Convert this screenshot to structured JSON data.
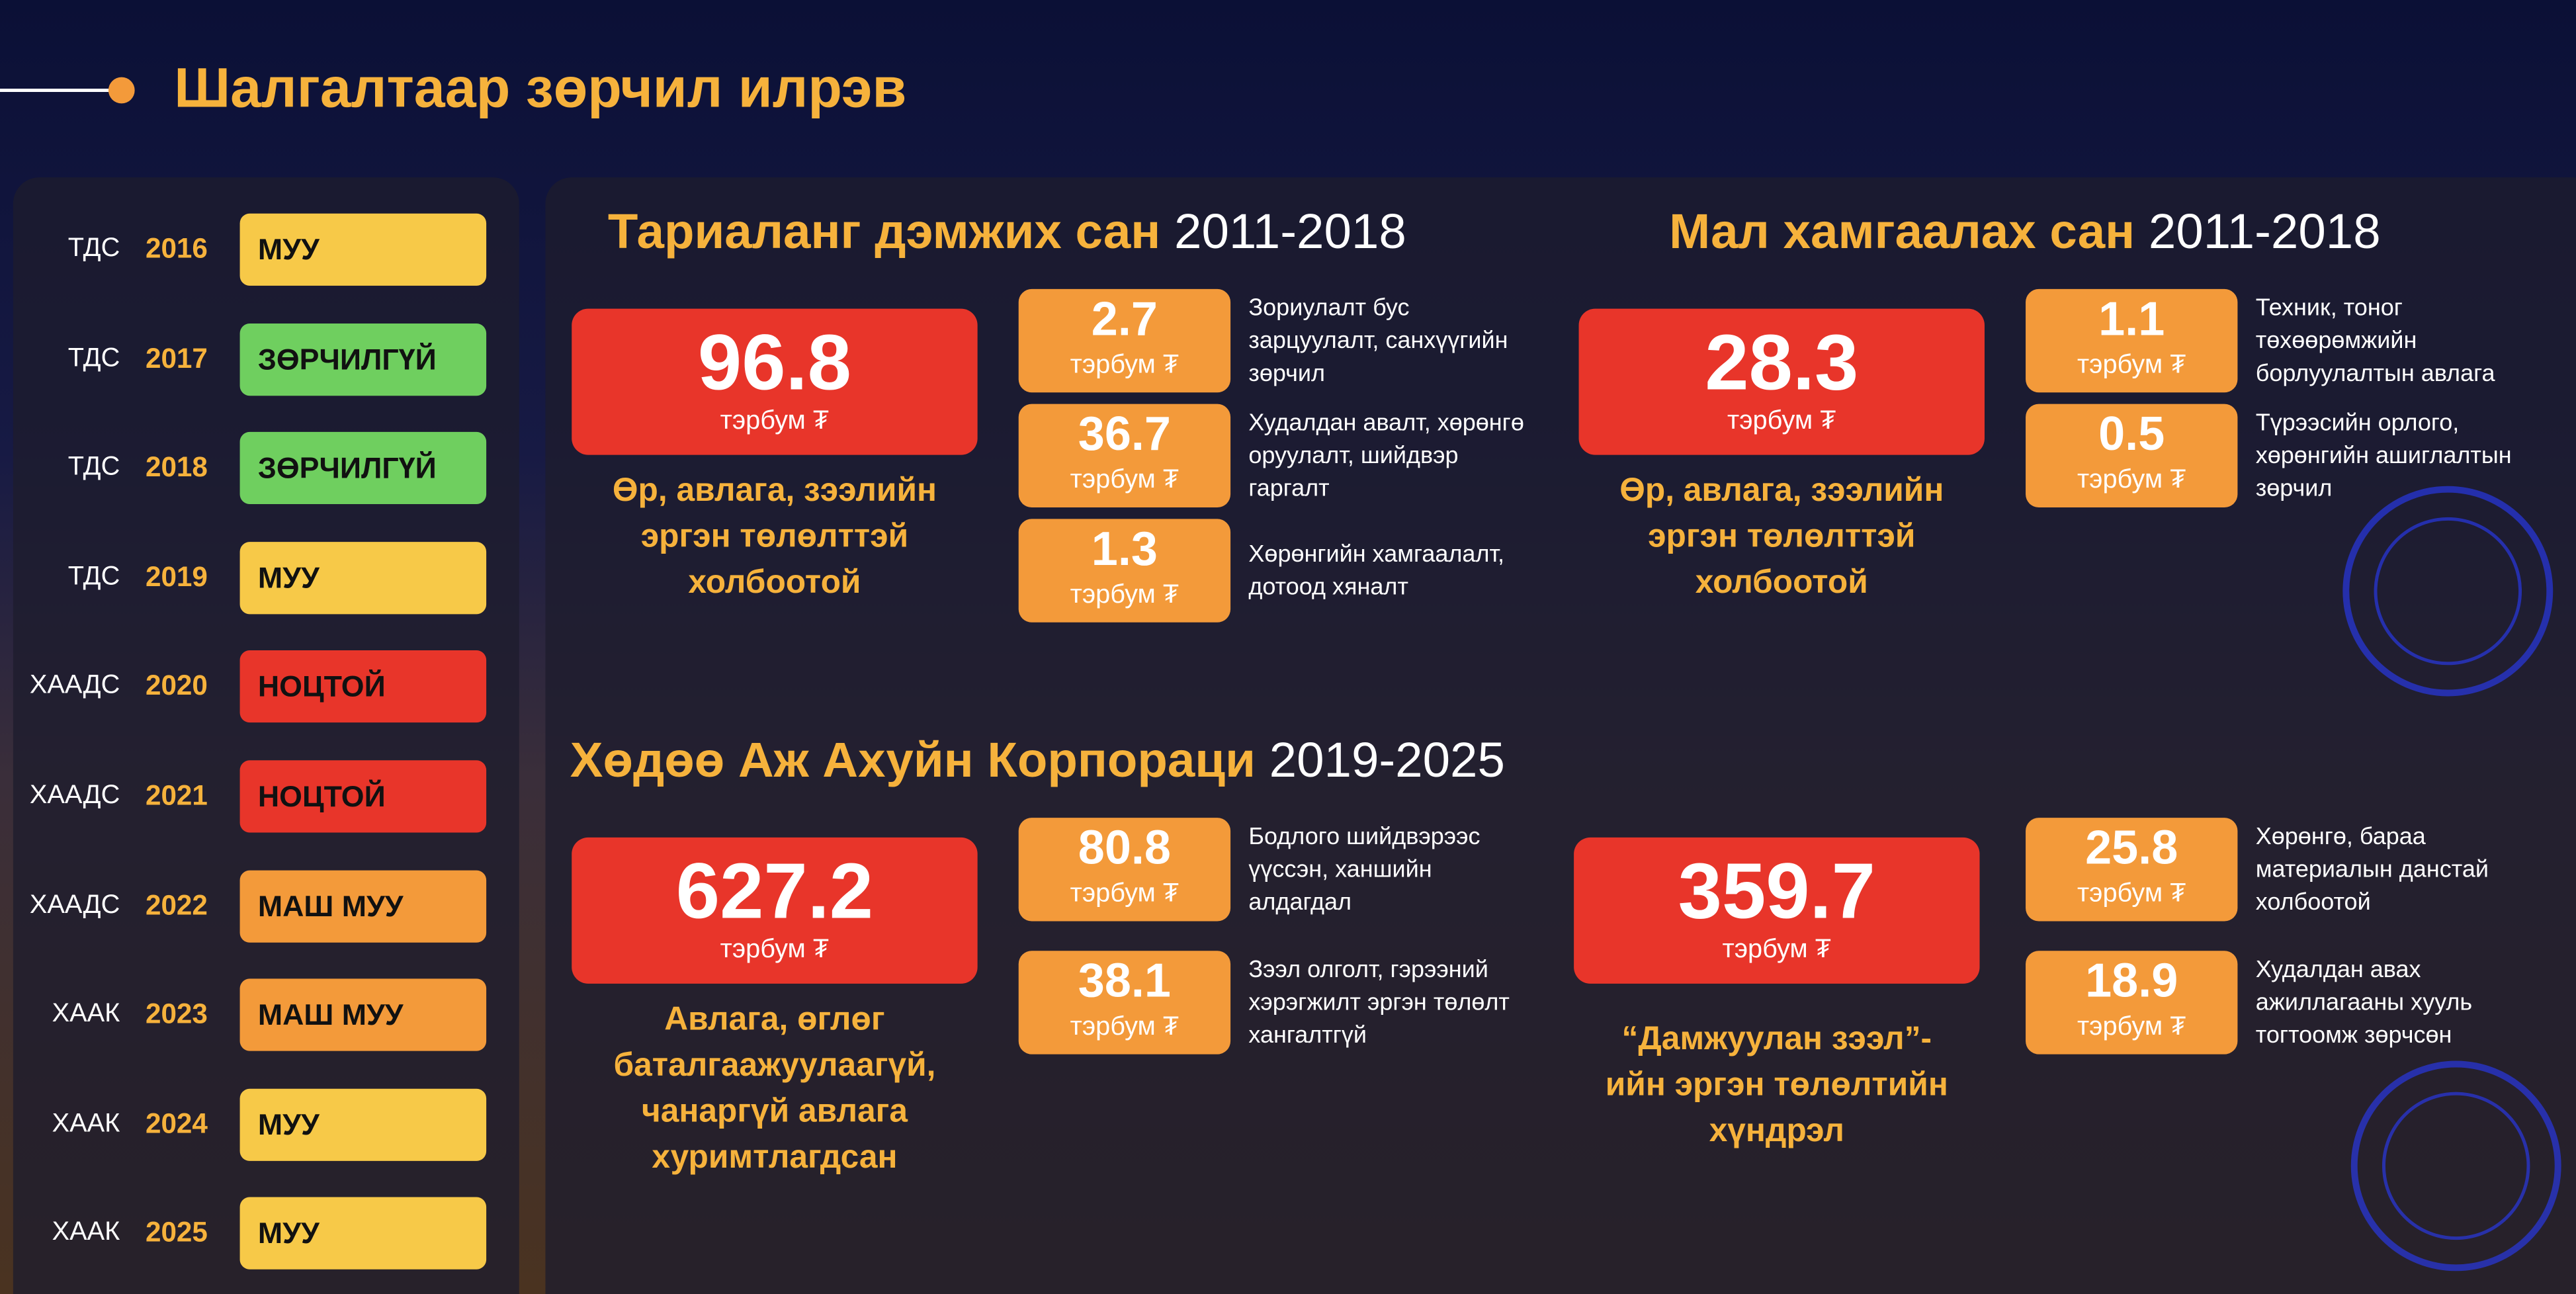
{
  "header": {
    "title": "Шалгалтаар зөрчил илрэв"
  },
  "unit": "тэрбум ₮",
  "years": [
    {
      "org": "ТДС",
      "year": "2016",
      "status": "МУУ",
      "color": "#f7c948"
    },
    {
      "org": "ТДС",
      "year": "2017",
      "status": "ЗӨРЧИЛГҮЙ",
      "color": "#6fcf5f"
    },
    {
      "org": "ТДС",
      "year": "2018",
      "status": "ЗӨРЧИЛГҮЙ",
      "color": "#6fcf5f"
    },
    {
      "org": "ТДС",
      "year": "2019",
      "status": "МУУ",
      "color": "#f7c948"
    },
    {
      "org": "ХААДС",
      "year": "2020",
      "status": "НОЦТОЙ",
      "color": "#e8352a"
    },
    {
      "org": "ХААДС",
      "year": "2021",
      "status": "НОЦТОЙ",
      "color": "#e8352a"
    },
    {
      "org": "ХААДС",
      "year": "2022",
      "status": "МАШ МУУ",
      "color": "#f39a3a"
    },
    {
      "org": "ХААК",
      "year": "2023",
      "status": "МАШ МУУ",
      "color": "#f39a3a"
    },
    {
      "org": "ХААК",
      "year": "2024",
      "status": "МУУ",
      "color": "#f7c948"
    },
    {
      "org": "ХААК",
      "year": "2025",
      "status": "МУУ",
      "color": "#f7c948"
    }
  ],
  "sections": [
    {
      "name": "Тариаланг дэмжих сан",
      "period": "2011-2018",
      "groups": [
        {
          "value": 96.8,
          "caption": [
            "Өр, авлага, зээлийн",
            "эргэн төлөлттэй",
            "холбоотой"
          ],
          "items": [
            {
              "value": 2.7,
              "text": [
                "Зориулалт бус",
                "зарцуулалт, санхүүгийн",
                "зөрчил"
              ]
            },
            {
              "value": 36.7,
              "text": [
                "Худалдан авалт, хөрөнгө",
                "оруулалт, шийдвэр",
                "гаргалт"
              ]
            },
            {
              "value": 1.3,
              "text": [
                "Хөрөнгийн хамгаалалт,",
                "дотоод хяналт"
              ]
            }
          ]
        }
      ]
    },
    {
      "name": "Мал хамгаалах сан",
      "period": "2011-2018",
      "groups": [
        {
          "value": 28.3,
          "caption": [
            "Өр, авлага, зээлийн",
            "эргэн төлөлттэй",
            "холбоотой"
          ],
          "items": [
            {
              "value": 1.1,
              "text": [
                "Техник, тоног",
                "төхөөрөмжийн",
                "борлуулалтын авлага"
              ]
            },
            {
              "value": 0.5,
              "text": [
                "Түрээсийн орлого,",
                "хөрөнгийн ашиглалтын",
                "зөрчил"
              ]
            }
          ]
        }
      ]
    },
    {
      "name": "Хөдөө Аж Ахуйн Корпораци",
      "period": "2019-2025",
      "groups": [
        {
          "value": 627.2,
          "caption": [
            "Авлага, өглөг",
            "баталгаажуулаагүй,",
            "чанаргүй авлага",
            "хуримтлагдсан"
          ],
          "items": [
            {
              "value": 80.8,
              "text": [
                "Бодлого шийдвэрээс",
                "үүссэн, ханшийн",
                "алдагдал"
              ]
            },
            {
              "value": 38.1,
              "text": [
                "Зээл олголт, гэрээний",
                "хэрэгжилт эргэн төлөлт",
                "хангалтгүй"
              ]
            }
          ]
        },
        {
          "value": 359.7,
          "caption": [
            "“Дамжуулан зээл”-",
            "ийн эргэн төлөлтийн",
            "хүндрэл"
          ],
          "items": [
            {
              "value": 25.8,
              "text": [
                "Хөрөнгө, бараа",
                "материалын данстай",
                "холбоотой"
              ]
            },
            {
              "value": 18.9,
              "text": [
                "Худалдан авах",
                "ажиллагааны хууль",
                "тогтоомж зөрчсөн"
              ]
            }
          ]
        }
      ]
    }
  ]
}
